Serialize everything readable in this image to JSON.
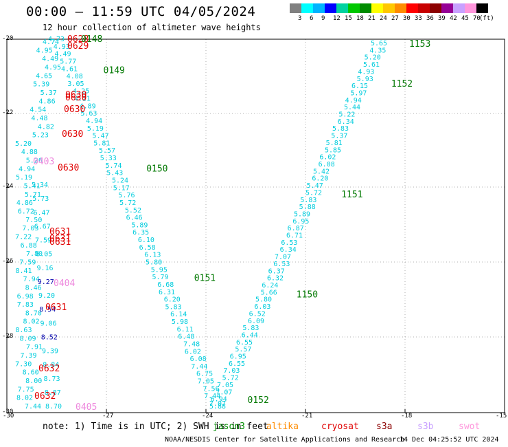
{
  "header": {
    "title": "00:00 – 11:59 UTC 04/05/2024",
    "subtitle": "12 hour collection of altimeter wave heights"
  },
  "legend": {
    "unit": "(ft)",
    "bins": [
      {
        "label": "3",
        "color": "#808080"
      },
      {
        "label": "6",
        "color": "#00ffff"
      },
      {
        "label": "9",
        "color": "#00b4ff"
      },
      {
        "label": "12",
        "color": "#0000ff"
      },
      {
        "label": "15",
        "color": "#00d2a0"
      },
      {
        "label": "18",
        "color": "#00c800"
      },
      {
        "label": "21",
        "color": "#008c00"
      },
      {
        "label": "24",
        "color": "#ffff00"
      },
      {
        "label": "27",
        "color": "#ffc800"
      },
      {
        "label": "30",
        "color": "#ff8c00"
      },
      {
        "label": "33",
        "color": "#ff0000"
      },
      {
        "label": "36",
        "color": "#c80000"
      },
      {
        "label": "39",
        "color": "#8c0000"
      },
      {
        "label": "42",
        "color": "#960096"
      },
      {
        "label": "45",
        "color": "#c8a0ff"
      },
      {
        "label": "70",
        "color": "#ff96dc"
      },
      {
        "label": "",
        "color": "#000000"
      }
    ]
  },
  "axes": {
    "lat_labels": [
      "-20",
      "-22",
      "-24",
      "-26",
      "-28",
      "-30"
    ],
    "lon_labels": [
      "-30",
      "-27",
      "-24",
      "-21",
      "-18",
      "-15"
    ]
  },
  "colors": {
    "cyan": "#00ccdd",
    "blue": "#2a9ad0",
    "darkblue": "#0000aa",
    "red": "#e00000",
    "green": "#007800",
    "pink": "#ee88dd"
  },
  "tracks": {
    "asc": {
      "values": [
        "5.65",
        "4.35",
        "5.20",
        "5.61",
        "4.93",
        "5.93",
        "6.15",
        "5.97",
        "4.94",
        "5.44",
        "5.22",
        "6.34",
        "5.83",
        "5.37",
        "5.81",
        "5.85",
        "6.02",
        "6.08",
        "5.42",
        "6.20",
        "5.47",
        "5.72",
        "5.83",
        "5.88",
        "5.89",
        "6.95",
        "6.87",
        "6.71",
        "6.53",
        "6.34",
        "7.07",
        "6.53",
        "6.37",
        "6.32",
        "6.24",
        "5.66",
        "5.80",
        "6.03",
        "6.52",
        "6.09",
        "5.83",
        "6.44",
        "6.55",
        "5.57",
        "6.95",
        "6.55",
        "7.03",
        "5.72",
        "7.05",
        "7.07",
        "6.94",
        "5.88"
      ],
      "times": [
        {
          "text": "1153",
          "frac": 0.0
        },
        {
          "text": "1152",
          "frac": 0.11
        },
        {
          "text": "1151",
          "frac": 0.415
        },
        {
          "text": "1150",
          "frac": 0.69
        }
      ]
    },
    "desc": {
      "values": [
        "4.73",
        "4.93",
        "4.49",
        "5.77",
        "4.61",
        "4.08",
        "3.05",
        "4.25",
        "4.21",
        "4.89",
        "5.63",
        "4.94",
        "5.19",
        "5.47",
        "5.81",
        "5.57",
        "5.33",
        "5.74",
        "5.43",
        "5.24",
        "5.17",
        "5.76",
        "5.72",
        "5.52",
        "6.46",
        "5.89",
        "6.35",
        "6.10",
        "6.58",
        "6.13",
        "5.80",
        "5.95",
        "5.79",
        "6.68",
        "6.31",
        "6.20",
        "5.83",
        "6.14",
        "5.98",
        "6.11",
        "6.48",
        "7.48",
        "6.02",
        "6.08",
        "7.44",
        "6.75",
        "7.05",
        "7.56",
        "7.44",
        "7.07"
      ],
      "times": [
        {
          "text": "0149",
          "frac": 0.08
        },
        {
          "text": "0150",
          "frac": 0.35
        },
        {
          "text": "0151",
          "frac": 0.65
        },
        {
          "text": "0152",
          "frac": 0.985
        }
      ]
    },
    "left_values": [
      "4.74",
      "4.95",
      "4.49",
      "4.95",
      "4.65",
      "5.39",
      "5.37",
      "4.86",
      "4.54",
      "4.48",
      "4.82",
      "5.23",
      "5.20",
      "4.88",
      "5.26",
      "4.94",
      "5.19",
      "5.41",
      "5.71",
      "4.86",
      "6.72",
      "7.50",
      "7.03",
      "7.22",
      "6.88",
      "7.80",
      "7.59",
      "8.41",
      "7.94",
      "8.46",
      "6.98",
      "7.83",
      "8.70",
      "8.02",
      "8.63",
      "8.09",
      "7.91",
      "7.39",
      "7.30",
      "8.60",
      "8.00",
      "7.75",
      "8.02",
      "7.44"
    ],
    "left_inner_values": [
      "5.34",
      "5.73",
      "6.47",
      "6.67",
      "7.59",
      "8.05",
      "9.16",
      "9.27",
      "9.20",
      "8.54",
      "9.06",
      "8.52",
      "9.39",
      "8.84",
      "8.73",
      "8.87",
      "8.70"
    ],
    "left_times": [
      {
        "text": "0628",
        "color": "red"
      },
      {
        "text": "0629",
        "color": "red"
      },
      {
        "text": "0148",
        "color": "green"
      },
      {
        "text": "0630",
        "color": "red"
      },
      {
        "text": "0630",
        "color": "red"
      },
      {
        "text": "0630",
        "color": "red"
      },
      {
        "text": "0630",
        "color": "red"
      },
      {
        "text": "0403",
        "color": "pink"
      },
      {
        "text": "0630",
        "color": "red"
      },
      {
        "text": "0631",
        "color": "red"
      },
      {
        "text": "0631",
        "color": "red"
      },
      {
        "text": "0631",
        "color": "red"
      },
      {
        "text": "0404",
        "color": "pink"
      },
      {
        "text": "0631",
        "color": "red"
      },
      {
        "text": "0632",
        "color": "red"
      },
      {
        "text": "0632",
        "color": "red"
      },
      {
        "text": "0405",
        "color": "pink"
      }
    ]
  },
  "footer": {
    "note": "note: 1) Time is in UTC; 2) SWH is in feet",
    "satellites": [
      {
        "name": "jason3",
        "color": "#008c00"
      },
      {
        "name": "altika",
        "color": "#ff8c00"
      },
      {
        "name": "cryosat",
        "color": "#e00000"
      },
      {
        "name": "s3a",
        "color": "#8c0000"
      },
      {
        "name": "s3b",
        "color": "#c8a0ff"
      },
      {
        "name": "swot",
        "color": "#ff96dc"
      }
    ],
    "credit": "NOAA/NESDIS Center for Satellite Applications and Research",
    "timestamp": "14 Dec 04:25:52 UTC 2024"
  }
}
